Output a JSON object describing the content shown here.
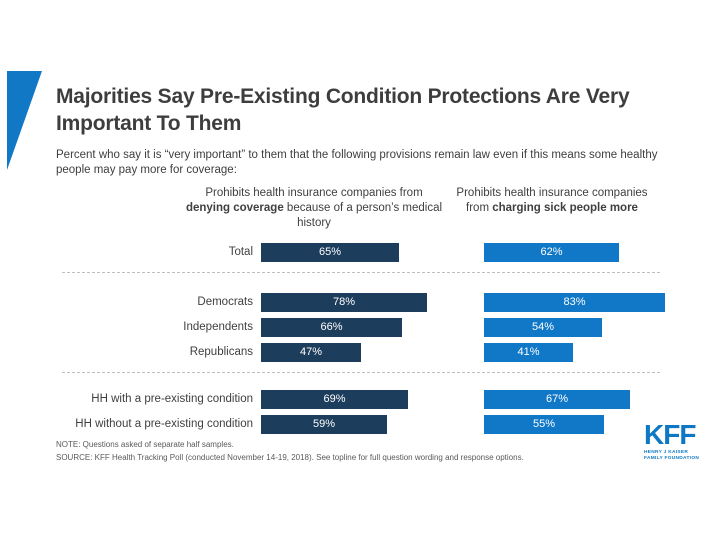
{
  "slide": {
    "title": "Majorities Say Pre-Existing Condition Protections Are Very Important To Them",
    "subtitle": "Percent who say it is “very important” to them that the following provisions remain law even if this means some healthy people may pay more for coverage:",
    "note": "NOTE: Questions asked of separate half samples.",
    "source": "SOURCE: KFF Health Tracking Poll (conducted November 14-19, 2018). See topline for full question wording and response options.",
    "logo": {
      "text": "KFF",
      "sub_line1": "HENRY J KAISER",
      "sub_line2": "FAMILY FOUNDATION"
    }
  },
  "chart_data": {
    "type": "bar",
    "orientation": "horizontal",
    "unit": "%",
    "xlim": [
      0,
      100
    ],
    "grid": false,
    "legend_position": "column-headers",
    "value_labels": "inside-center",
    "categories": [
      "Total",
      "Democrats",
      "Independents",
      "Republicans",
      "HH with a pre-existing condition",
      "HH without a pre-existing condition"
    ],
    "groups": [
      [
        0
      ],
      [
        1,
        2,
        3
      ],
      [
        4,
        5
      ]
    ],
    "series": [
      {
        "name": "Prohibits health insurance companies from denying coverage because of a person’s medical history",
        "header": {
          "pre": "Prohibits health insurance companies from ",
          "bold": "denying coverage",
          "post": " because of a person’s medical history"
        },
        "color": "#1d3d5c",
        "values": [
          65,
          78,
          66,
          47,
          69,
          59
        ]
      },
      {
        "name": "Prohibits health insurance companies from charging sick people more",
        "header": {
          "pre": "Prohibits health insurance companies from ",
          "bold": "charging sick people more",
          "post": ""
        },
        "color": "#1178c8",
        "values": [
          62,
          83,
          54,
          41,
          67,
          55
        ]
      }
    ]
  }
}
